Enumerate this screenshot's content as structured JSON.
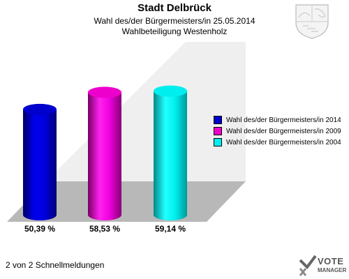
{
  "header": {
    "title": "Stadt Delbrück",
    "subtitle": "Wahl des/der Bürgermeisters/in  25.05.2014",
    "subtitle2": "Wahlbeteiligung Westenholz"
  },
  "chart_data": {
    "type": "bar",
    "title": "Stadt Delbrück",
    "subtitle": "Wahl des/der Bürgermeisters/in  25.05.2014 / Wahlbeteiligung Westenholz",
    "categories": [
      "Wahl des/der Bürgermeisters/in  2014",
      "Wahl des/der Bürgermeisters/in 2009",
      "Wahl des/der Bürgermeisters/in  2004"
    ],
    "values": [
      50.39,
      58.53,
      59.14
    ],
    "value_labels": [
      "50,39 %",
      "58,53 %",
      "59,14 %"
    ],
    "colors": [
      "#0000cc",
      "#ee00cc",
      "#00eeee"
    ],
    "legend_position": "right",
    "grid": false
  },
  "footer": {
    "text": "2 von 2 Schnellmeldungen"
  },
  "brand": {
    "line1": "VOTE",
    "line2": "MANAGER"
  }
}
